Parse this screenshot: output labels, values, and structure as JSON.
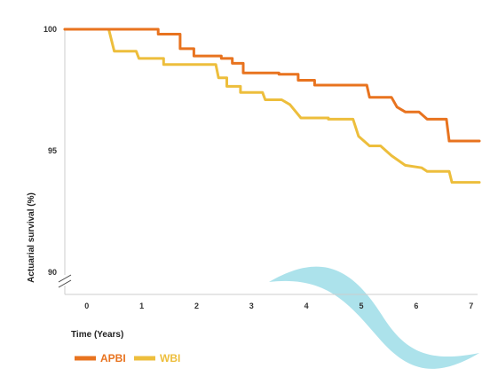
{
  "chart_data": {
    "type": "line",
    "title": "",
    "xlabel": "Time (Years)",
    "ylabel": "Actuarial survival (%)",
    "xlim": [
      -0.4,
      7.15
    ],
    "ylim": [
      89,
      100.2
    ],
    "x_ticks": [
      0,
      1,
      2,
      3,
      4,
      5,
      6,
      7
    ],
    "x_tick_labels": [
      "0",
      "1",
      "2",
      "3",
      "4",
      "5",
      "6",
      "7"
    ],
    "y_ticks": [
      90,
      95,
      100
    ],
    "y_tick_labels": [
      "90",
      "95",
      "100"
    ],
    "y_axis_break": true,
    "grid": false,
    "legend_position": "bottom-left",
    "series": [
      {
        "name": "APBI",
        "color": "#E8731F",
        "points": [
          [
            -0.4,
            100
          ],
          [
            1.3,
            100
          ],
          [
            1.3,
            99.8
          ],
          [
            1.7,
            99.8
          ],
          [
            1.7,
            99.2
          ],
          [
            1.95,
            99.2
          ],
          [
            1.95,
            98.9
          ],
          [
            2.45,
            98.9
          ],
          [
            2.45,
            98.8
          ],
          [
            2.65,
            98.8
          ],
          [
            2.65,
            98.6
          ],
          [
            2.85,
            98.6
          ],
          [
            2.85,
            98.2
          ],
          [
            3.5,
            98.2
          ],
          [
            3.5,
            98.15
          ],
          [
            3.85,
            98.15
          ],
          [
            3.85,
            97.9
          ],
          [
            4.15,
            97.9
          ],
          [
            4.15,
            97.7
          ],
          [
            5.1,
            97.7
          ],
          [
            5.15,
            97.2
          ],
          [
            5.55,
            97.2
          ],
          [
            5.65,
            96.8
          ],
          [
            5.8,
            96.6
          ],
          [
            6.05,
            96.6
          ],
          [
            6.2,
            96.3
          ],
          [
            6.55,
            96.3
          ],
          [
            6.6,
            95.4
          ],
          [
            7.15,
            95.4
          ]
        ]
      },
      {
        "name": "WBI",
        "color": "#EDBE3C",
        "points": [
          [
            -0.4,
            100
          ],
          [
            0.4,
            100
          ],
          [
            0.5,
            99.1
          ],
          [
            0.9,
            99.1
          ],
          [
            0.95,
            98.8
          ],
          [
            1.4,
            98.8
          ],
          [
            1.4,
            98.55
          ],
          [
            2.35,
            98.55
          ],
          [
            2.4,
            98.0
          ],
          [
            2.55,
            98.0
          ],
          [
            2.55,
            97.65
          ],
          [
            2.8,
            97.65
          ],
          [
            2.8,
            97.4
          ],
          [
            3.2,
            97.4
          ],
          [
            3.25,
            97.1
          ],
          [
            3.55,
            97.1
          ],
          [
            3.7,
            96.9
          ],
          [
            3.9,
            96.35
          ],
          [
            4.4,
            96.35
          ],
          [
            4.4,
            96.3
          ],
          [
            4.85,
            96.3
          ],
          [
            4.95,
            95.6
          ],
          [
            5.15,
            95.2
          ],
          [
            5.35,
            95.2
          ],
          [
            5.55,
            94.8
          ],
          [
            5.8,
            94.4
          ],
          [
            6.1,
            94.3
          ],
          [
            6.2,
            94.15
          ],
          [
            6.6,
            94.15
          ],
          [
            6.65,
            93.7
          ],
          [
            7.15,
            93.7
          ]
        ]
      }
    ]
  },
  "legend": {
    "items": [
      {
        "label": "APBI",
        "color": "#E8731F"
      },
      {
        "label": "WBI",
        "color": "#EDBE3C"
      }
    ]
  },
  "decoration": {
    "wave_color": "#A8E0EA"
  }
}
